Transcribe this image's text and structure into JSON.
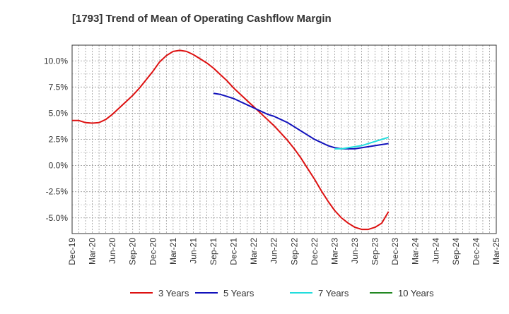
{
  "chart_data": {
    "type": "line",
    "title": "[1793]  Trend of Mean of Operating Cashflow Margin",
    "xlabel": "",
    "ylabel": "",
    "ylim": [
      -6.5,
      11.5
    ],
    "y_ticks": [
      10.0,
      7.5,
      5.0,
      2.5,
      0.0,
      -2.5,
      -5.0
    ],
    "y_tick_labels": [
      "10.0%",
      "7.5%",
      "5.0%",
      "2.5%",
      "0.0%",
      "-2.5%",
      "-5.0%"
    ],
    "x_start": "Dec-19",
    "x_end": "Mar-25",
    "x_tick_labels": [
      "Dec-19",
      "Mar-20",
      "Jun-20",
      "Sep-20",
      "Dec-20",
      "Mar-21",
      "Jun-21",
      "Sep-21",
      "Dec-21",
      "Mar-22",
      "Jun-22",
      "Sep-22",
      "Dec-22",
      "Mar-23",
      "Jun-23",
      "Sep-23",
      "Dec-23",
      "Mar-24",
      "Jun-24",
      "Sep-24",
      "Dec-24",
      "Mar-25"
    ],
    "grid": true,
    "legend_position": "bottom",
    "series": [
      {
        "name": "3 Years",
        "color": "#dd1111",
        "start_index": 0,
        "values": [
          4.3,
          4.3,
          4.1,
          4.05,
          4.1,
          4.4,
          4.9,
          5.5,
          6.1,
          6.7,
          7.4,
          8.2,
          9.0,
          9.9,
          10.5,
          10.9,
          11.0,
          10.9,
          10.6,
          10.2,
          9.8,
          9.3,
          8.7,
          8.1,
          7.4,
          6.8,
          6.2,
          5.6,
          5.0,
          4.4,
          3.8,
          3.1,
          2.4,
          1.6,
          0.7,
          -0.3,
          -1.3,
          -2.4,
          -3.4,
          -4.3,
          -5.0,
          -5.5,
          -5.9,
          -6.1,
          -6.1,
          -5.9,
          -5.5,
          -4.4
        ]
      },
      {
        "name": "5 Years",
        "color": "#1111bb",
        "start_index": 21,
        "values": [
          6.9,
          6.8,
          6.6,
          6.4,
          6.1,
          5.8,
          5.5,
          5.2,
          4.9,
          4.7,
          4.4,
          4.1,
          3.7,
          3.3,
          2.9,
          2.5,
          2.2,
          1.9,
          1.7,
          1.6,
          1.6,
          1.6,
          1.7,
          1.8,
          1.9,
          2.0,
          2.1
        ]
      },
      {
        "name": "7 Years",
        "color": "#22dddd",
        "start_index": 39,
        "values": [
          1.6,
          1.6,
          1.7,
          1.8,
          1.9,
          2.1,
          2.3,
          2.5,
          2.7
        ]
      },
      {
        "name": "10 Years",
        "color": "#228822",
        "start_index": 0,
        "values": []
      }
    ]
  }
}
